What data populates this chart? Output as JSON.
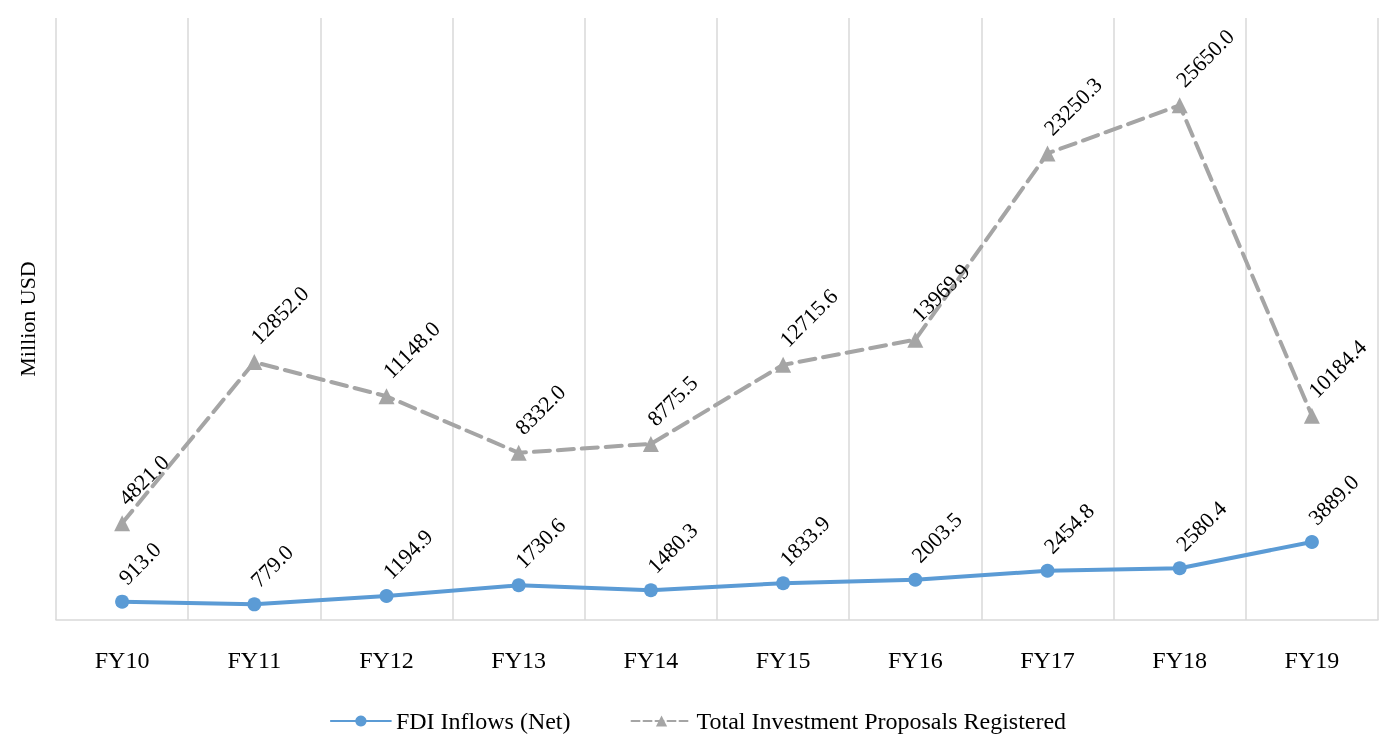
{
  "chart_data": {
    "type": "line",
    "ylabel": "Million USD",
    "categories": [
      "FY10",
      "FY11",
      "FY12",
      "FY13",
      "FY14",
      "FY15",
      "FY16",
      "FY17",
      "FY18",
      "FY19"
    ],
    "series": [
      {
        "name": "FDI Inflows (Net)",
        "color": "#5b9bd5",
        "marker": "circle",
        "line_style": "solid",
        "values": [
          913.0,
          779.0,
          1194.9,
          1730.6,
          1480.3,
          1833.9,
          2003.5,
          2454.8,
          2580.4,
          3889.0
        ],
        "value_labels": [
          "913.0",
          "779.0",
          "1194.9",
          "1730.6",
          "1480.3",
          "1833.9",
          "2003.5",
          "2454.8",
          "2580.4",
          "3889.0"
        ]
      },
      {
        "name": "Total Investment Proposals Registered",
        "color": "#a5a5a5",
        "marker": "triangle",
        "line_style": "dashed",
        "values": [
          4821.0,
          12852.0,
          11148.0,
          8332.0,
          8775.5,
          12715.6,
          13969.9,
          23250.3,
          25650.0,
          10184.4
        ],
        "value_labels": [
          "4821.0",
          "12852.0",
          "11148.0",
          "8332.0",
          "8775.5",
          "12715.6",
          "13969.9",
          "23250.3",
          "25650.0",
          "10184.4"
        ]
      }
    ],
    "grid": "x",
    "legend": "bottom"
  }
}
